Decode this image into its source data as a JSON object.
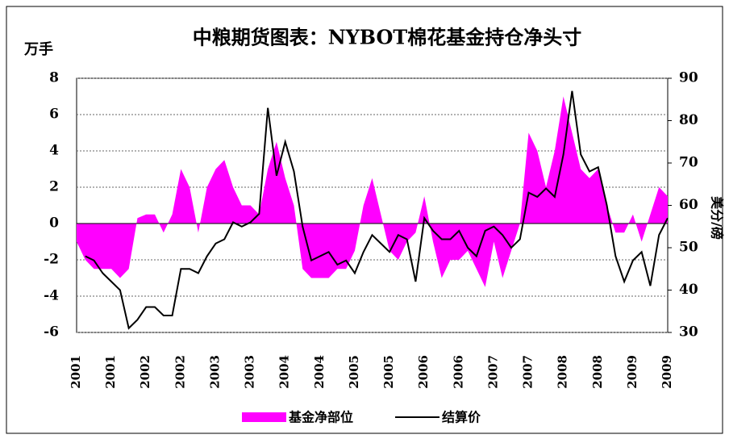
{
  "chart_data": {
    "type": "area-line",
    "title": "中粮期货图表：NYBOT棉花基金持仓净头寸",
    "y_label": "万手",
    "y2_label": "美分/磅",
    "categories": [
      "2001",
      null,
      null,
      null,
      "2001",
      null,
      null,
      null,
      "2002",
      null,
      null,
      null,
      "2002",
      null,
      null,
      null,
      "2003",
      null,
      null,
      null,
      "2003",
      null,
      null,
      null,
      "2004",
      null,
      null,
      null,
      "2004",
      null,
      null,
      null,
      "2005",
      null,
      null,
      null,
      "2005",
      null,
      null,
      null,
      "2006",
      null,
      null,
      null,
      "2006",
      null,
      null,
      null,
      "2007",
      null,
      null,
      null,
      "2007",
      null,
      null,
      null,
      "2008",
      null,
      null,
      null,
      "2008",
      null,
      null,
      null,
      "2009",
      null,
      null,
      null,
      "2009"
    ],
    "series": [
      {
        "name": "基金净部位",
        "color": "#ff00ff",
        "kind": "area",
        "values": [
          -1,
          -2,
          -2.5,
          -2.5,
          -2.5,
          -3,
          -2.5,
          0.3,
          0.5,
          0.5,
          -0.5,
          0.5,
          3,
          2,
          -0.5,
          2,
          3,
          3.5,
          2,
          1,
          1,
          0.5,
          3,
          4.5,
          2.5,
          1,
          -2.5,
          -3,
          -3,
          -3,
          -2.5,
          -2.5,
          -1.5,
          1,
          2.5,
          0.5,
          -1.5,
          -2,
          -1,
          -0.5,
          1.5,
          -1,
          -3,
          -2,
          -2,
          -1.5,
          -2.5,
          -3.5,
          -1,
          -3,
          -1.5,
          0,
          5,
          4,
          2,
          4,
          7,
          5,
          3,
          2.5,
          3,
          1,
          -0.5,
          -0.5,
          0.5,
          -1,
          0.5,
          2,
          1.5
        ]
      },
      {
        "name": "结算价",
        "color": "#000000",
        "kind": "line",
        "axis": "y2",
        "values": [
          null,
          48,
          47,
          44,
          42,
          40,
          31,
          33,
          36,
          36,
          34,
          34,
          45,
          45,
          44,
          48,
          51,
          52,
          56,
          55,
          56,
          58,
          83,
          67,
          75,
          68,
          55,
          47,
          48,
          49,
          46,
          47,
          44,
          49,
          53,
          51,
          49,
          53,
          52,
          42,
          57,
          54,
          52,
          52,
          54,
          50,
          48,
          54,
          55,
          53,
          50,
          52,
          63,
          62,
          64,
          62,
          72,
          87,
          72,
          68,
          69,
          60,
          48,
          42,
          47,
          49,
          41,
          53,
          57
        ]
      }
    ],
    "ylim": [
      -6,
      8
    ],
    "yticks": [
      -6,
      -4,
      -2,
      0,
      2,
      4,
      6,
      8
    ],
    "y2lim": [
      30,
      90
    ],
    "y2ticks": [
      30,
      40,
      50,
      60,
      70,
      80,
      90
    ],
    "grid": true,
    "legend": "bottom"
  }
}
